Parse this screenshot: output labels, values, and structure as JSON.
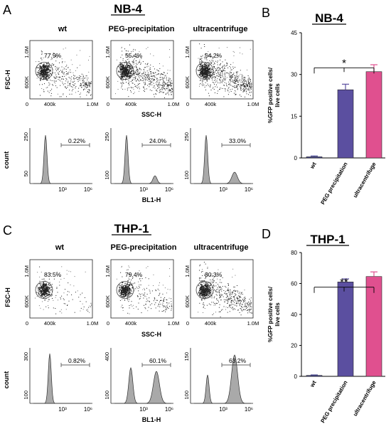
{
  "top": {
    "panel_letter_flow": "A",
    "panel_letter_bar": "B",
    "title_flow": "NB-4",
    "title_bar": "NB-4",
    "conditions": [
      "wt",
      "PEG-precipitation",
      "ultracentrifuge"
    ],
    "scatter": {
      "ylabel": "FSC-H",
      "xlabel": "SSC-H",
      "y_ticks": [
        "1.0M",
        "600K",
        "0"
      ],
      "x_ticks": [
        "400k",
        "1.0M"
      ],
      "gate_percent": [
        "77.9%",
        "55.4%",
        "54.2%"
      ]
    },
    "histogram": {
      "ylabel": "count",
      "xlabel": "BL1-H",
      "y_ticks_top": [
        "250",
        "250",
        "250"
      ],
      "y_ticks_low": [
        "50",
        "100",
        "100"
      ],
      "x_ticks": [
        "10³",
        "10⁶"
      ],
      "gate_percent": [
        "0.22%",
        "24.0%",
        "33.0%"
      ]
    }
  },
  "bottom": {
    "panel_letter_flow": "C",
    "panel_letter_bar": "D",
    "title_flow": "THP-1",
    "title_bar": "THP-1",
    "conditions": [
      "wt",
      "PEG-precipitation",
      "ultracentrifuge"
    ],
    "scatter": {
      "ylabel": "FSC-H",
      "xlabel": "SSC-H",
      "y_ticks": [
        "1.0M",
        "600K",
        "0"
      ],
      "x_ticks": [
        "400k",
        "1.0M"
      ],
      "gate_percent": [
        "83.5%",
        "79.4%",
        "80.3%"
      ]
    },
    "histogram": {
      "ylabel": "count",
      "xlabel": "BL1-H",
      "y_ticks_top": [
        "300",
        "400",
        "150"
      ],
      "y_ticks_low": [
        "100",
        "100",
        "100"
      ],
      "x_ticks": [
        "10³",
        "10⁶"
      ],
      "gate_percent": [
        "0.82%",
        "60.1%",
        "63.2%"
      ]
    }
  },
  "colors": {
    "wt": "#4a4a9a",
    "peg": "#5b4fa0",
    "ultra": "#e0508f",
    "hist_fill": "#a9a9a9"
  },
  "chart_data": [
    {
      "type": "bar",
      "title": "NB-4",
      "ylabel": "%GFP positive cells/ live cells",
      "categories": [
        "wt",
        "PEG precipitation",
        "ultracentrifuge"
      ],
      "values": [
        0.4,
        24.5,
        31
      ],
      "errors": [
        0.3,
        2,
        2.5
      ],
      "ylim": [
        0,
        45
      ],
      "yticks": [
        0,
        15,
        30,
        45
      ],
      "significance": "*"
    },
    {
      "type": "bar",
      "title": "THP-1",
      "ylabel": "%GFP positive cells/ live cells",
      "categories": [
        "wt",
        "PEG precipitation",
        "ultracentrifuge"
      ],
      "values": [
        0.6,
        61,
        64.5
      ],
      "errors": [
        0.3,
        2,
        3
      ],
      "ylim": [
        0,
        80
      ],
      "yticks": [
        0,
        20,
        40,
        60,
        80
      ],
      "significance": "**"
    }
  ]
}
